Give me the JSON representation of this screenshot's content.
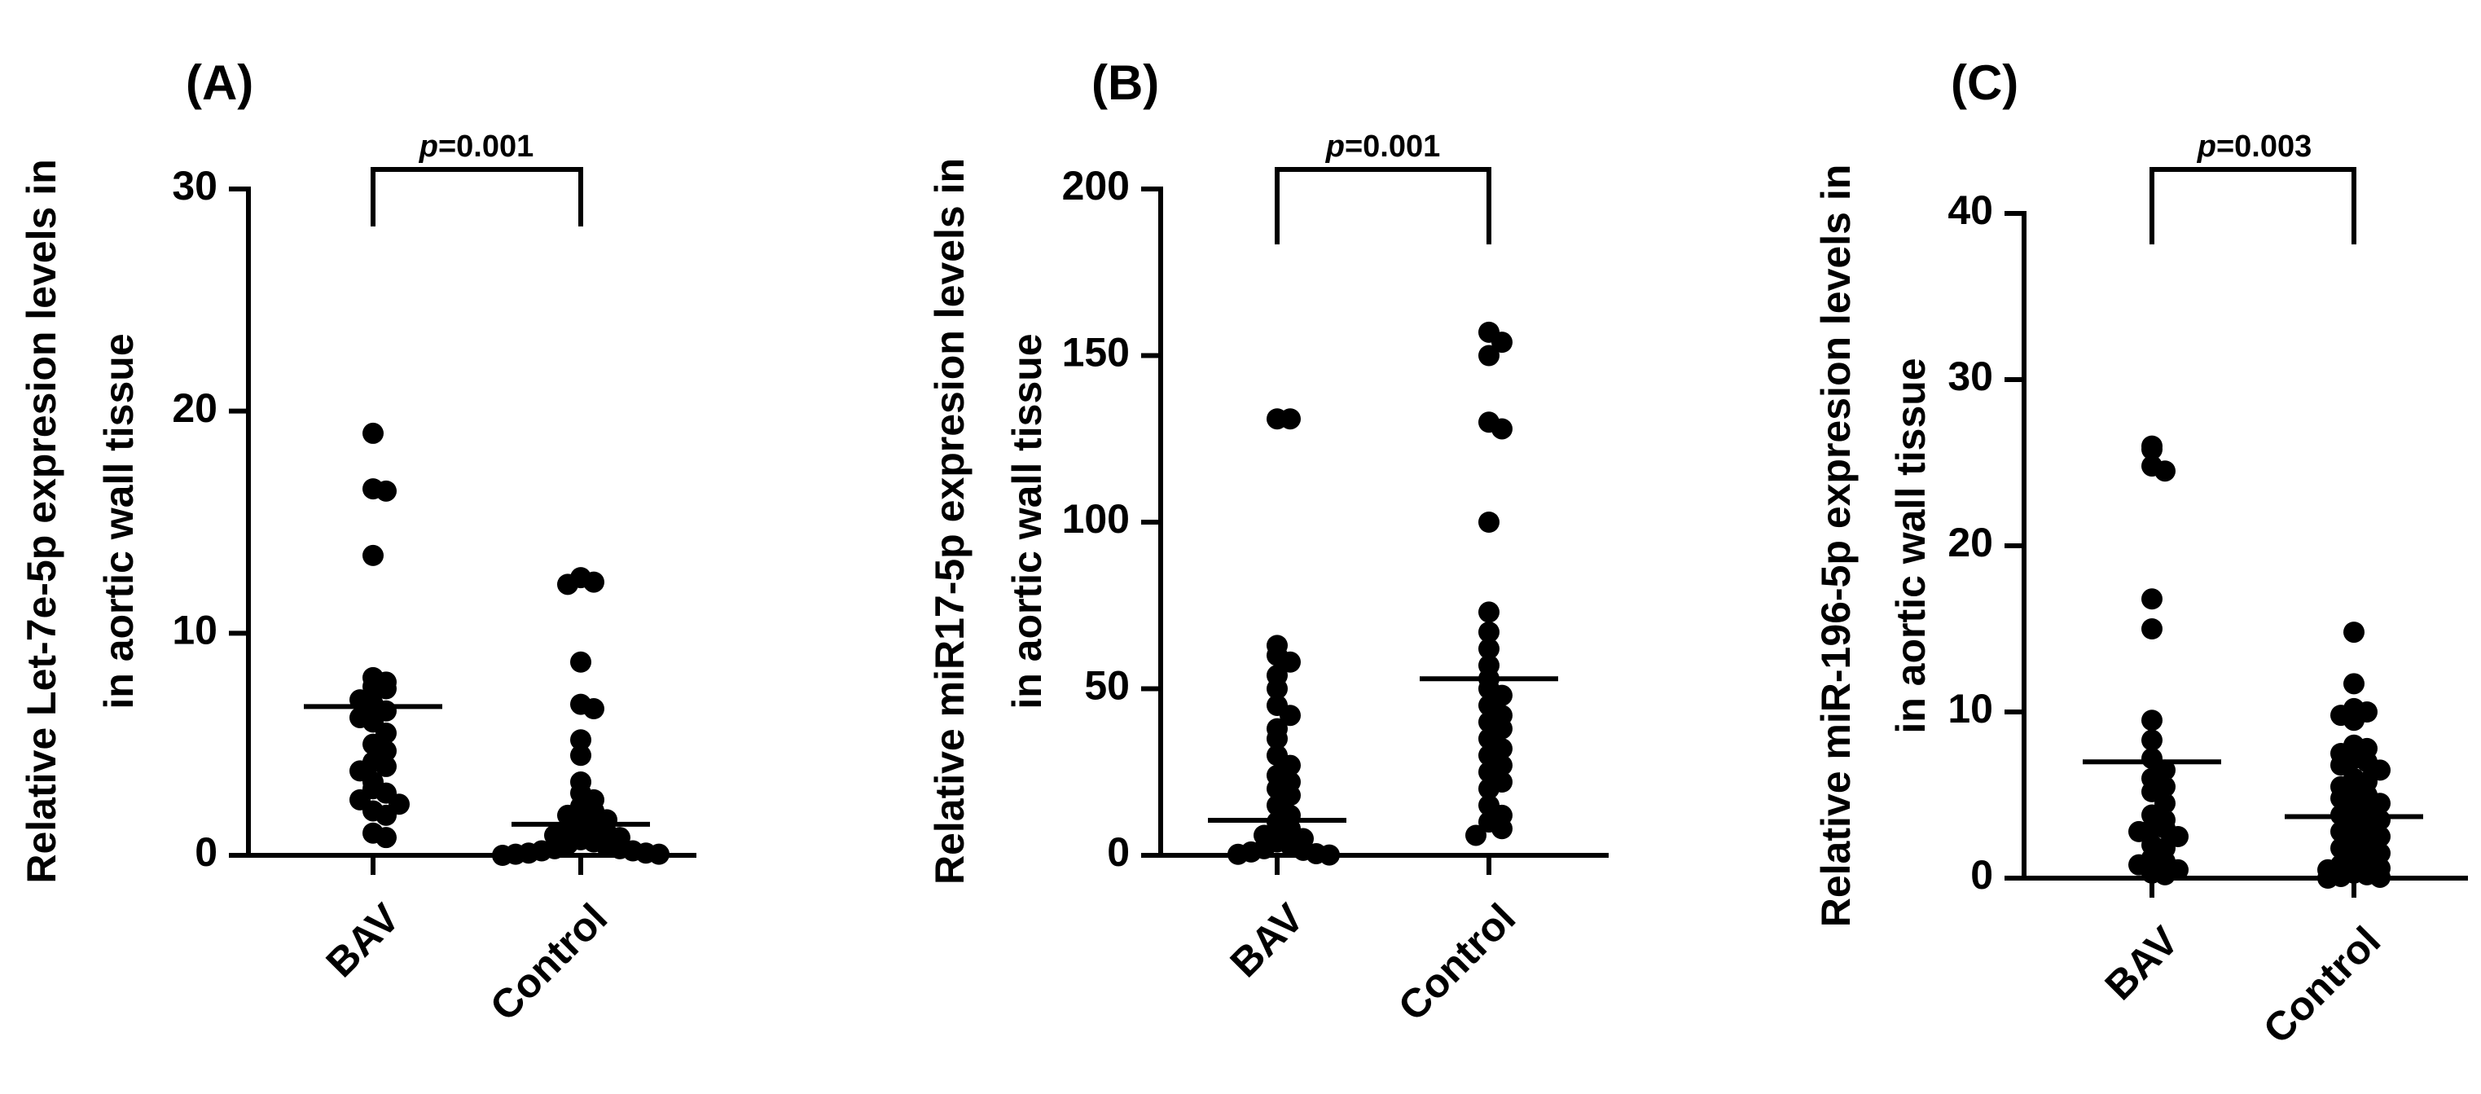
{
  "chart_data": [
    {
      "type": "scatter",
      "panel": "(A)",
      "ylabel_lines": [
        "Relative Let-7e-5p expresion levels in",
        "in aortic wall tissue"
      ],
      "categories": [
        "BAV",
        "Control"
      ],
      "yticks": [
        "0",
        "10",
        "20",
        "30"
      ],
      "ylim": [
        0,
        30
      ],
      "p_value_label": "p",
      "p_value_number": "=0.001",
      "means": [
        6.7,
        1.4
      ],
      "series": [
        {
          "values": [
            19.0,
            16.5,
            16.4,
            13.5,
            8.0,
            7.8,
            7.6,
            7.5,
            7.0,
            6.8,
            6.5,
            6.2,
            6.0,
            5.5,
            5.0,
            4.7,
            4.2,
            4.0,
            3.8,
            3.3,
            3.0,
            2.8,
            2.5,
            2.3,
            2.0,
            1.8,
            1.0,
            0.8
          ]
        },
        {
          "values": [
            12.5,
            12.3,
            12.2,
            8.7,
            6.8,
            6.6,
            5.2,
            4.5,
            3.3,
            2.8,
            2.5,
            2.2,
            2.0,
            1.8,
            1.6,
            1.5,
            1.3,
            1.1,
            1.0,
            0.9,
            0.8,
            0.7,
            0.6,
            0.5,
            0.4,
            0.3,
            0.3,
            0.2,
            0.2,
            0.1,
            0.1,
            0.05,
            0.05,
            0.0
          ]
        }
      ]
    },
    {
      "type": "scatter",
      "panel": "(B)",
      "ylabel_lines": [
        "Relative miR17-5p expresion levels in",
        "in aortic wall tissue"
      ],
      "categories": [
        "BAV",
        "Control"
      ],
      "yticks": [
        "0",
        "50",
        "100",
        "150",
        "200"
      ],
      "ylim": [
        0,
        200
      ],
      "p_value_label": "p",
      "p_value_number": "=0.001",
      "means": [
        10.5,
        53
      ],
      "series": [
        {
          "values": [
            131,
            131,
            63,
            60,
            58,
            54,
            50,
            45,
            42,
            38,
            35,
            30,
            27,
            24,
            22,
            20,
            18,
            15,
            12,
            10,
            8,
            6,
            5,
            4,
            3,
            2,
            1.5,
            1,
            0.5,
            0.3,
            0.1
          ]
        },
        {
          "values": [
            157,
            154,
            150,
            130,
            128,
            100,
            73,
            67,
            62,
            57,
            53,
            50,
            48,
            45,
            42,
            40,
            38,
            35,
            32,
            30,
            27,
            25,
            22,
            20,
            15,
            12,
            10,
            8,
            6
          ]
        }
      ]
    },
    {
      "type": "scatter",
      "panel": "(C)",
      "ylabel_lines": [
        "Relative miR-196-5p expresion levels in",
        "in aortic wall tissue"
      ],
      "categories": [
        "BAV",
        "Control"
      ],
      "yticks": [
        "0",
        "10",
        "20",
        "30",
        "40"
      ],
      "ylim": [
        0,
        40
      ],
      "p_value_label": "p",
      "p_value_number": "=0.003",
      "means": [
        7.0,
        3.7
      ],
      "series": [
        {
          "values": [
            26.0,
            25.8,
            24.8,
            24.5,
            16.8,
            15.0,
            9.5,
            8.3,
            7.2,
            6.5,
            6.0,
            5.5,
            5.2,
            4.5,
            3.8,
            3.5,
            3.0,
            3.0,
            2.8,
            2.5,
            2.0,
            1.8,
            1.2,
            1.0,
            0.8,
            0.5,
            0.3,
            0.2
          ]
        },
        {
          "values": [
            14.8,
            11.7,
            10.2,
            10.0,
            9.8,
            9.5,
            8.0,
            7.8,
            7.5,
            7.2,
            7.0,
            6.8,
            6.5,
            6.0,
            5.8,
            5.5,
            5.2,
            5.0,
            4.8,
            4.5,
            4.2,
            4.0,
            3.8,
            3.5,
            3.2,
            3.0,
            2.8,
            2.5,
            2.2,
            2.0,
            1.8,
            1.5,
            1.2,
            1.0,
            0.8,
            0.6,
            0.5,
            0.3,
            0.2,
            0.1,
            0.05,
            0.0
          ]
        }
      ]
    }
  ]
}
